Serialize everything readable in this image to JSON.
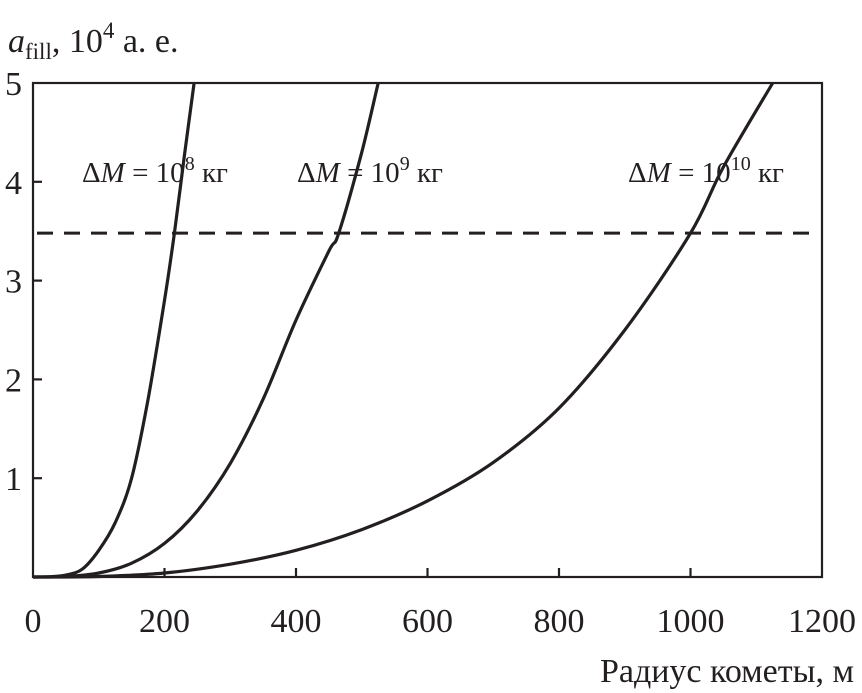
{
  "chart_data": {
    "type": "line",
    "xlabel": "Радиус кометы, м",
    "ylabel": {
      "main": "a",
      "sub": "fill",
      "rest_prefix": ", 10",
      "sup": "4",
      "rest_suffix": " а. е."
    },
    "xlim": [
      0,
      1200
    ],
    "ylim": [
      0,
      5
    ],
    "x_ticks": [
      0,
      200,
      400,
      600,
      800,
      1000,
      1200
    ],
    "y_ticks": [
      1,
      2,
      3,
      4,
      5
    ],
    "x_tick_labels": [
      "0",
      "200",
      "400",
      "600",
      "800",
      "1000",
      "1200"
    ],
    "y_tick_labels": [
      "1",
      "2",
      "3",
      "4",
      "5"
    ],
    "grid": false,
    "reference_line": {
      "y": 3.48,
      "style": "dashed"
    },
    "series": [
      {
        "label": {
          "prefix": "ΔM = 10",
          "exp": "8",
          "unit": " кг"
        },
        "x": [
          0,
          25,
          50,
          75,
          100,
          125,
          150,
          175,
          200,
          215,
          230,
          245
        ],
        "y": [
          0,
          0.003,
          0.02,
          0.08,
          0.27,
          0.55,
          1.0,
          1.8,
          2.8,
          3.48,
          4.25,
          5.0
        ]
      },
      {
        "label": {
          "prefix": "ΔM = 10",
          "exp": "9",
          "unit": " кг"
        },
        "x": [
          0,
          50,
          100,
          150,
          200,
          250,
          300,
          350,
          400,
          450,
          465,
          500,
          525
        ],
        "y": [
          0,
          0.005,
          0.04,
          0.14,
          0.34,
          0.67,
          1.15,
          1.8,
          2.6,
          3.3,
          3.48,
          4.3,
          5.0
        ]
      },
      {
        "label": {
          "prefix": "ΔM = 10",
          "exp": "10",
          "unit": " кг"
        },
        "x": [
          0,
          100,
          200,
          300,
          400,
          500,
          600,
          700,
          800,
          900,
          1000,
          1050,
          1125
        ],
        "y": [
          0,
          0.005,
          0.04,
          0.13,
          0.27,
          0.48,
          0.77,
          1.16,
          1.71,
          2.5,
          3.48,
          4.15,
          5.0
        ]
      }
    ]
  }
}
